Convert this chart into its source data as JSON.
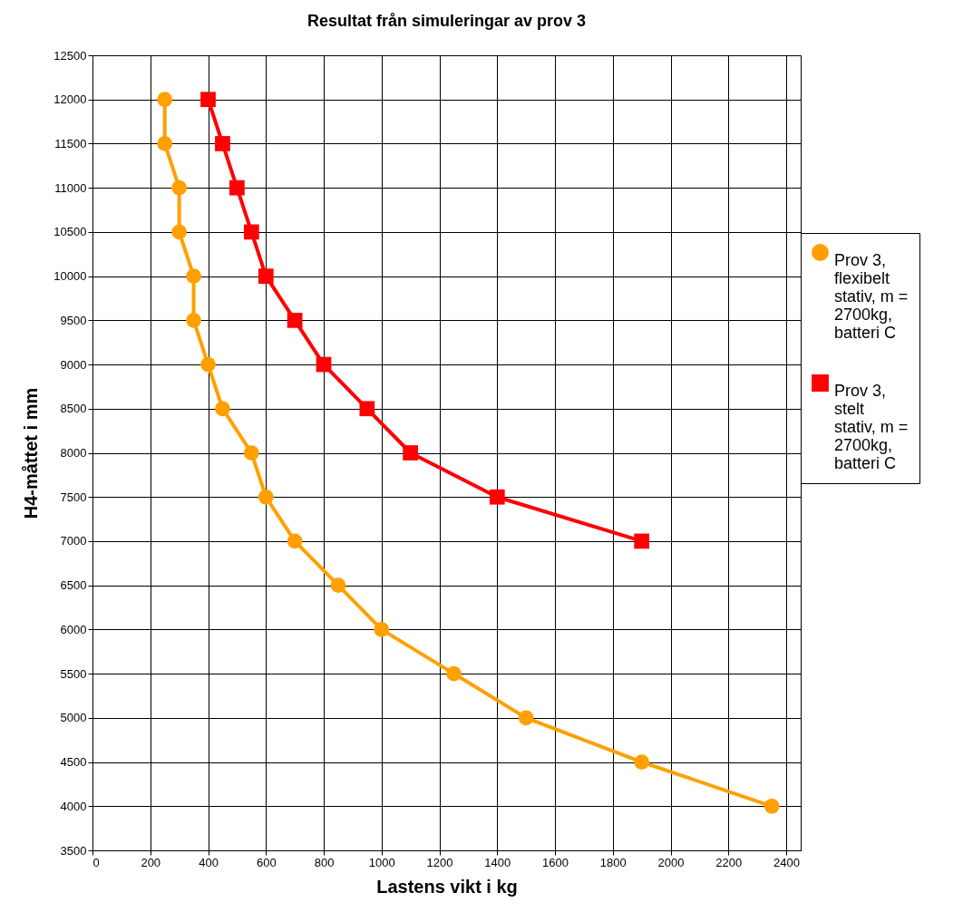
{
  "chart_data": {
    "type": "line",
    "title": "Resultat från simuleringar av prov 3",
    "xlabel": "Lastens vikt i kg",
    "ylabel": "H4-måttet i mm",
    "xlim": [
      0,
      2450
    ],
    "xticks": [
      0,
      200,
      400,
      600,
      800,
      1000,
      1200,
      1400,
      1600,
      1800,
      2000,
      2200,
      2400
    ],
    "ylim": [
      3500,
      12500
    ],
    "yticks": [
      3500,
      4000,
      4500,
      5000,
      5500,
      6000,
      6500,
      7000,
      7500,
      8000,
      8500,
      9000,
      9500,
      10000,
      10500,
      11000,
      11500,
      12000,
      12500
    ],
    "grid": true,
    "legend": "right",
    "series": [
      {
        "name": "Prov 3, flexibelt stativ, m = 2700kg, batteri C",
        "color": "#ffa000",
        "marker": "circle",
        "x": [
          250,
          250,
          300,
          300,
          350,
          350,
          400,
          450,
          550,
          600,
          700,
          850,
          1000,
          1250,
          1500,
          1900,
          2350
        ],
        "values": [
          12000,
          11500,
          11000,
          10500,
          10000,
          9500,
          9000,
          8500,
          8000,
          7500,
          7000,
          6500,
          6000,
          5500,
          5000,
          4500,
          4000
        ]
      },
      {
        "name": "Prov 3, stelt stativ, m = 2700kg, batteri C",
        "color": "#ff0000",
        "marker": "square",
        "x": [
          400,
          450,
          500,
          550,
          600,
          700,
          800,
          950,
          1100,
          1400,
          1900
        ],
        "values": [
          12000,
          11500,
          11000,
          10500,
          10000,
          9500,
          9000,
          8500,
          8000,
          7500,
          7000
        ]
      }
    ]
  }
}
